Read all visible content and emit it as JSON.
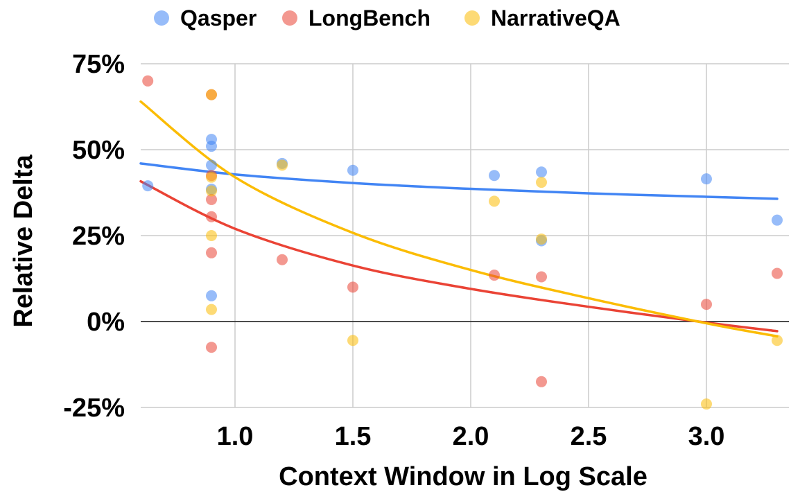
{
  "chart_data": {
    "type": "scatter",
    "xlabel": "Context Window in Log Scale",
    "ylabel": "Relative Delta",
    "xlim": [
      0.6,
      3.35
    ],
    "ylim": [
      -25,
      75
    ],
    "x_ticks": [
      1.0,
      1.5,
      2.0,
      2.5,
      3.0
    ],
    "x_tick_labels": [
      "1.0",
      "1.5",
      "2.0",
      "2.5",
      "3.0"
    ],
    "y_ticks": [
      75,
      50,
      25,
      0,
      -25
    ],
    "y_tick_labels": [
      "75%",
      "50%",
      "25%",
      "0%",
      "-25%"
    ],
    "grid": true,
    "legend_position": "top",
    "series": [
      {
        "name": "Qasper",
        "color": "#4285f4",
        "points": [
          [
            0.63,
            39.5
          ],
          [
            0.9,
            53
          ],
          [
            0.9,
            51
          ],
          [
            0.9,
            45.5
          ],
          [
            0.9,
            38.5
          ],
          [
            0.9,
            7.5
          ],
          [
            1.2,
            46
          ],
          [
            1.5,
            44
          ],
          [
            2.1,
            42.5
          ],
          [
            2.3,
            43.5
          ],
          [
            2.3,
            23.5
          ],
          [
            3.0,
            41.5
          ],
          [
            3.3,
            29.5
          ]
        ],
        "trend": [
          [
            0.6,
            46
          ],
          [
            1.0,
            42.8
          ],
          [
            1.5,
            40.3
          ],
          [
            2.0,
            38.6
          ],
          [
            2.5,
            37.3
          ],
          [
            3.0,
            36.3
          ],
          [
            3.3,
            35.7
          ]
        ]
      },
      {
        "name": "LongBench",
        "color": "#ea4335",
        "points": [
          [
            0.63,
            70
          ],
          [
            0.9,
            66
          ],
          [
            0.9,
            42.5
          ],
          [
            0.9,
            35.5
          ],
          [
            0.9,
            30.5
          ],
          [
            0.9,
            20
          ],
          [
            0.9,
            -7.5
          ],
          [
            1.2,
            18
          ],
          [
            1.5,
            10
          ],
          [
            2.1,
            13.5
          ],
          [
            2.3,
            13
          ],
          [
            2.3,
            -17.5
          ],
          [
            3.0,
            5
          ],
          [
            3.3,
            14
          ]
        ],
        "trend": [
          [
            0.6,
            40.8
          ],
          [
            1.0,
            27
          ],
          [
            1.5,
            16.3
          ],
          [
            2.0,
            9.5
          ],
          [
            2.5,
            4.3
          ],
          [
            3.0,
            -0.3
          ],
          [
            3.3,
            -2.8
          ]
        ]
      },
      {
        "name": "NarrativeQA",
        "color": "#fbbc04",
        "points": [
          [
            0.9,
            66
          ],
          [
            0.9,
            42
          ],
          [
            0.9,
            38
          ],
          [
            0.9,
            25
          ],
          [
            0.9,
            3.5
          ],
          [
            1.2,
            45.5
          ],
          [
            1.5,
            -5.5
          ],
          [
            2.1,
            35
          ],
          [
            2.3,
            40.5
          ],
          [
            2.3,
            24
          ],
          [
            3.0,
            -24
          ],
          [
            3.3,
            -5.5
          ]
        ],
        "trend": [
          [
            0.6,
            64
          ],
          [
            1.0,
            42
          ],
          [
            1.5,
            25.8
          ],
          [
            2.0,
            15
          ],
          [
            2.5,
            6.8
          ],
          [
            3.0,
            -0.5
          ],
          [
            3.3,
            -4.3
          ]
        ]
      }
    ]
  }
}
